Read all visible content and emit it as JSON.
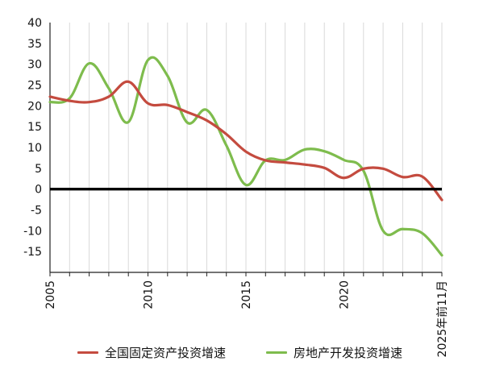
{
  "chart_data": {
    "type": "line",
    "title": "",
    "xlabel": "",
    "ylabel": "",
    "xlim": [
      2005,
      2025
    ],
    "ylim": [
      -20,
      40
    ],
    "y_ticks": [
      40,
      35,
      30,
      25,
      20,
      15,
      10,
      5,
      0,
      -5,
      -10,
      -15
    ],
    "x_tick_labels": [
      "2005",
      "2010",
      "2015",
      "2020",
      "2025年前11月"
    ],
    "x_tick_values": [
      2005,
      2010,
      2015,
      2020,
      2025
    ],
    "grid": "vertical",
    "legend_position": "bottom",
    "series": [
      {
        "name": "全国固定资产投资增速",
        "color": "#c44b3f",
        "x": [
          2005,
          2006,
          2007,
          2008,
          2009,
          2010,
          2011,
          2012,
          2013,
          2014,
          2015,
          2016,
          2017,
          2018,
          2019,
          2020,
          2021,
          2022,
          2023,
          2024,
          2025
        ],
        "values": [
          22.2,
          21.2,
          20.9,
          22.2,
          25.8,
          20.6,
          20.2,
          18.5,
          16.5,
          13.2,
          9.0,
          6.9,
          6.4,
          5.9,
          5.1,
          2.7,
          4.9,
          4.9,
          2.9,
          3.0,
          -2.6
        ]
      },
      {
        "name": "房地产开发投资增速",
        "color": "#7ebc4d",
        "x": [
          2005,
          2006,
          2007,
          2008,
          2009,
          2010,
          2011,
          2012,
          2013,
          2014,
          2015,
          2016,
          2017,
          2018,
          2019,
          2020,
          2021,
          2022,
          2023,
          2024,
          2025
        ],
        "values": [
          20.9,
          21.8,
          30.2,
          24.2,
          16.1,
          31.0,
          27.2,
          16.0,
          19.0,
          10.5,
          1.0,
          6.9,
          7.0,
          9.5,
          9.1,
          7.0,
          4.4,
          -10.0,
          -9.6,
          -10.6,
          -15.9
        ]
      }
    ],
    "reference_line": {
      "y": 0,
      "color": "#000000"
    }
  }
}
